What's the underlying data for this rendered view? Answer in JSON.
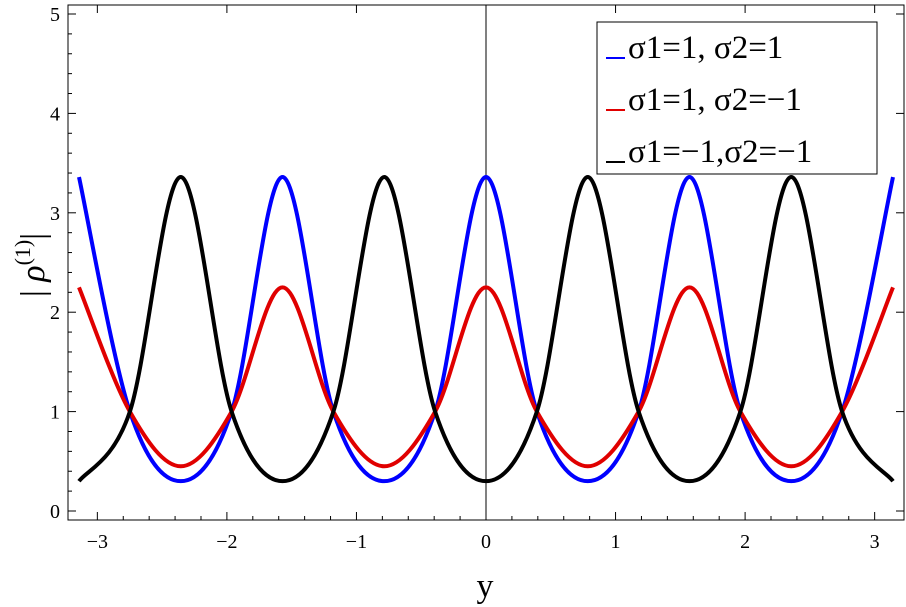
{
  "chart_data": {
    "type": "line",
    "xlabel": "y",
    "ylabel": "| ρ(1) |",
    "xlim": [
      -3.1416,
      3.1416
    ],
    "ylim": [
      0,
      5
    ],
    "xticks": [
      -3,
      -2,
      -1,
      0,
      1,
      2,
      3
    ],
    "xtick_labels": [
      "−3",
      "−2",
      "−1",
      "0",
      "1",
      "2",
      "3"
    ],
    "yticks": [
      0,
      1,
      2,
      3,
      4,
      5
    ],
    "ytick_labels": [
      "0",
      "1",
      "2",
      "3",
      "4",
      "5"
    ],
    "grid": false,
    "legend_position": "top-right",
    "series": [
      {
        "name": "σ1=1,  σ2=1",
        "color": "#0000ff",
        "x": [
          -3.1416,
          -2.7489,
          -2.3562,
          -1.9635,
          -1.5708,
          -1.1781,
          -0.7854,
          -0.3927,
          0,
          0.3927,
          0.7854,
          1.1781,
          1.5708,
          1.9635,
          2.3562,
          2.7489,
          3.1416
        ],
        "values": [
          3.36,
          1.0,
          0.3,
          1.0,
          3.36,
          1.0,
          0.3,
          1.0,
          3.36,
          1.0,
          0.3,
          1.0,
          3.36,
          1.0,
          0.3,
          1.0,
          3.36
        ]
      },
      {
        "name": "σ1=1,  σ2=−1",
        "color": "#e00000",
        "x": [
          -3.1416,
          -2.7489,
          -2.3562,
          -1.9635,
          -1.5708,
          -1.1781,
          -0.7854,
          -0.3927,
          0,
          0.3927,
          0.7854,
          1.1781,
          1.5708,
          1.9635,
          2.3562,
          2.7489,
          3.1416
        ],
        "values": [
          2.25,
          1.0,
          0.45,
          1.0,
          2.25,
          1.0,
          0.45,
          1.0,
          2.25,
          1.0,
          0.45,
          1.0,
          2.25,
          1.0,
          0.45,
          1.0,
          2.25
        ]
      },
      {
        "name": "σ1=−1,σ2=−1",
        "color": "#000000",
        "x": [
          -3.1416,
          -2.7489,
          -2.3562,
          -1.9635,
          -1.5708,
          -1.1781,
          -0.7854,
          -0.3927,
          0,
          0.3927,
          0.7854,
          1.1781,
          1.5708,
          1.9635,
          2.3562,
          2.7489,
          3.1416
        ],
        "values": [
          0.3,
          1.0,
          3.36,
          1.0,
          0.3,
          1.0,
          3.36,
          1.0,
          0.3,
          1.0,
          3.36,
          1.0,
          0.3,
          1.0,
          3.36,
          1.0,
          0.3
        ]
      }
    ]
  }
}
